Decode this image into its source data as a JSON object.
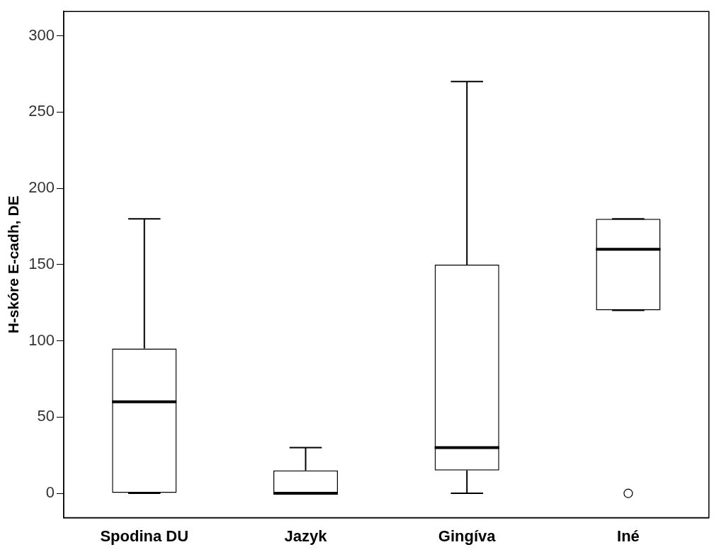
{
  "chart_data": {
    "type": "box",
    "ylabel": "H-skóre E-cadh, DE",
    "categories": [
      "Spodina DU",
      "Jazyk",
      "Gingíva",
      "Iné"
    ],
    "boxes": [
      {
        "low": 0,
        "q1": 0,
        "median": 60,
        "q3": 95,
        "high": 180
      },
      {
        "low": 0,
        "q1": 0,
        "median": 0,
        "q3": 15,
        "high": 30
      },
      {
        "low": 0,
        "q1": 15,
        "median": 30,
        "q3": 150,
        "high": 270
      },
      {
        "low": 120,
        "q1": 120,
        "median": 160,
        "q3": 180,
        "high": 180,
        "outliers": [
          0
        ]
      }
    ],
    "ylim": [
      -16,
      316
    ],
    "yticks": [
      0,
      50,
      100,
      150,
      200,
      250,
      300
    ],
    "grid": false,
    "legend": false
  }
}
